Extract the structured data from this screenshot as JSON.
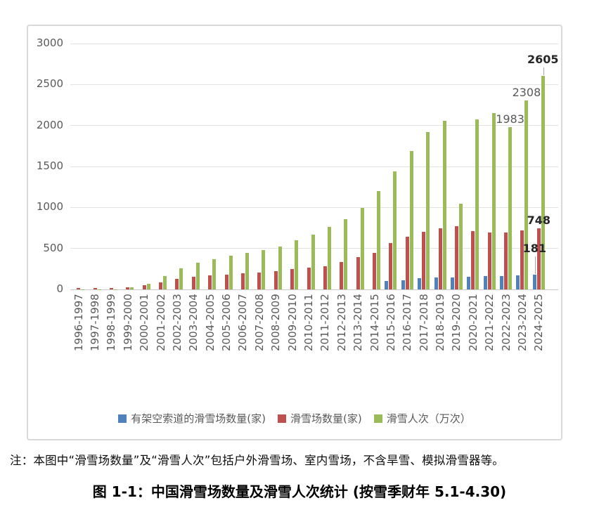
{
  "figure": {
    "note": "注：本图中“滑雪场数量”及“滑雪人次”包括户外滑雪场、室内雪场，不含旱雪、模拟滑雪器等。",
    "caption": "图 1-1：中国滑雪场数量及滑雪人次统计 (按雪季财年 5.1-4.30)"
  },
  "chart_data": {
    "type": "bar",
    "categories": [
      "1996-1997",
      "1997-1998",
      "1998-1999",
      "1999-2000",
      "2000-2001",
      "2001-2002",
      "2002-2003",
      "2003-2004",
      "2004-2005",
      "2005-2006",
      "2006-2007",
      "2007-2008",
      "2008-2009",
      "2009-2010",
      "2010-2011",
      "2011-2012",
      "2012-2013",
      "2013-2014",
      "2014-2015",
      "2015-2016",
      "2016-2017",
      "2017-2018",
      "2018-2019",
      "2019-2020",
      "2020-2021",
      "2021-2022",
      "2022-2023",
      "2023-2024",
      "2024-2025"
    ],
    "series": [
      {
        "name": "有架空索道的滑雪场数量(家)",
        "color": "#4f81bd",
        "values": [
          null,
          null,
          null,
          null,
          null,
          null,
          null,
          null,
          null,
          null,
          null,
          null,
          null,
          null,
          null,
          null,
          null,
          null,
          null,
          102,
          112,
          133,
          142,
          149,
          152,
          159,
          164,
          169,
          181
        ]
      },
      {
        "name": "滑雪场数量(家)",
        "color": "#c0504d",
        "values": [
          13,
          17,
          15,
          26,
          55,
          90,
          127,
          153,
          170,
          178,
          195,
          210,
          224,
          250,
          268,
          280,
          335,
          395,
          445,
          568,
          646,
          703,
          742,
          770,
          715,
          692,
          697,
          719,
          748
        ]
      },
      {
        "name": "滑雪人次（万次）",
        "color": "#9bbb59",
        "values": [
          2,
          3,
          4,
          25,
          70,
          165,
          258,
          330,
          372,
          415,
          450,
          480,
          523,
          596,
          669,
          760,
          856,
          994,
          1196,
          1443,
          1690,
          1917,
          2054,
          1046,
          2074,
          2151,
          1983,
          2308,
          2605
        ]
      }
    ],
    "ylim": [
      0,
      3000
    ],
    "yticks": [
      0,
      500,
      1000,
      1500,
      2000,
      2500,
      3000
    ],
    "grid": true,
    "legend_position": "bottom",
    "data_labels": [
      {
        "series_index": 2,
        "category_index": 26,
        "text": "1983",
        "bold": false,
        "offset": 20,
        "leader": 0
      },
      {
        "series_index": 2,
        "category_index": 27,
        "text": "2308",
        "bold": false,
        "offset": 20,
        "leader": 0
      },
      {
        "series_index": 2,
        "category_index": 28,
        "text": "2605",
        "bold": true,
        "offset": 32,
        "leader": 11
      },
      {
        "series_index": 1,
        "category_index": 28,
        "text": "748",
        "bold": true,
        "offset": 20,
        "leader": 0
      },
      {
        "series_index": 0,
        "category_index": 28,
        "text": "181",
        "bold": true,
        "offset": 46,
        "leader": 25
      }
    ]
  }
}
